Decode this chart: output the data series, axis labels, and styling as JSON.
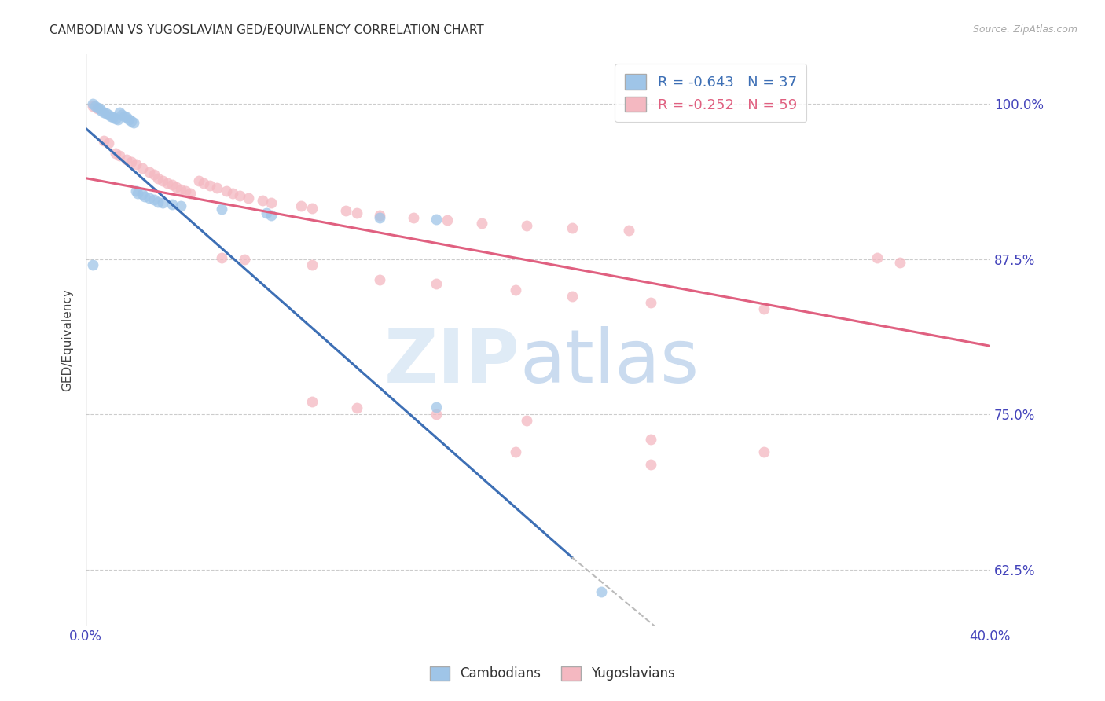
{
  "title": "CAMBODIAN VS YUGOSLAVIAN GED/EQUIVALENCY CORRELATION CHART",
  "source": "Source: ZipAtlas.com",
  "ylabel": "GED/Equivalency",
  "ytick_labels": [
    "100.0%",
    "87.5%",
    "75.0%",
    "62.5%"
  ],
  "ytick_values": [
    1.0,
    0.875,
    0.75,
    0.625
  ],
  "xlim": [
    0.0,
    0.4
  ],
  "ylim": [
    0.58,
    1.04
  ],
  "legend_blue_r": "-0.643",
  "legend_blue_n": "37",
  "legend_pink_r": "-0.252",
  "legend_pink_n": "59",
  "blue_color": "#9fc5e8",
  "pink_color": "#f4b8c1",
  "blue_line_color": "#3d6fb5",
  "pink_line_color": "#e06080",
  "cambodian_points": [
    [
      0.003,
      1.0
    ],
    [
      0.004,
      0.998
    ],
    [
      0.005,
      0.997
    ],
    [
      0.006,
      0.996
    ],
    [
      0.007,
      0.994
    ],
    [
      0.008,
      0.993
    ],
    [
      0.009,
      0.992
    ],
    [
      0.01,
      0.991
    ],
    [
      0.011,
      0.99
    ],
    [
      0.012,
      0.989
    ],
    [
      0.013,
      0.988
    ],
    [
      0.014,
      0.987
    ],
    [
      0.015,
      0.993
    ],
    [
      0.016,
      0.991
    ],
    [
      0.017,
      0.99
    ],
    [
      0.018,
      0.989
    ],
    [
      0.019,
      0.987
    ],
    [
      0.02,
      0.986
    ],
    [
      0.021,
      0.985
    ],
    [
      0.022,
      0.93
    ],
    [
      0.023,
      0.928
    ],
    [
      0.025,
      0.927
    ],
    [
      0.026,
      0.925
    ],
    [
      0.028,
      0.924
    ],
    [
      0.03,
      0.923
    ],
    [
      0.032,
      0.921
    ],
    [
      0.034,
      0.92
    ],
    [
      0.038,
      0.919
    ],
    [
      0.042,
      0.918
    ],
    [
      0.06,
      0.915
    ],
    [
      0.08,
      0.912
    ],
    [
      0.082,
      0.91
    ],
    [
      0.13,
      0.908
    ],
    [
      0.155,
      0.907
    ],
    [
      0.155,
      0.756
    ],
    [
      0.228,
      0.607
    ],
    [
      0.003,
      0.87
    ]
  ],
  "yugoslavian_points": [
    [
      0.003,
      0.998
    ],
    [
      0.005,
      0.996
    ],
    [
      0.008,
      0.97
    ],
    [
      0.01,
      0.968
    ],
    [
      0.013,
      0.96
    ],
    [
      0.015,
      0.958
    ],
    [
      0.018,
      0.955
    ],
    [
      0.02,
      0.953
    ],
    [
      0.022,
      0.951
    ],
    [
      0.025,
      0.948
    ],
    [
      0.028,
      0.945
    ],
    [
      0.03,
      0.943
    ],
    [
      0.032,
      0.94
    ],
    [
      0.034,
      0.938
    ],
    [
      0.036,
      0.936
    ],
    [
      0.038,
      0.935
    ],
    [
      0.04,
      0.933
    ],
    [
      0.042,
      0.931
    ],
    [
      0.044,
      0.93
    ],
    [
      0.046,
      0.928
    ],
    [
      0.05,
      0.938
    ],
    [
      0.052,
      0.936
    ],
    [
      0.055,
      0.934
    ],
    [
      0.058,
      0.932
    ],
    [
      0.062,
      0.93
    ],
    [
      0.065,
      0.928
    ],
    [
      0.068,
      0.926
    ],
    [
      0.072,
      0.924
    ],
    [
      0.078,
      0.922
    ],
    [
      0.082,
      0.92
    ],
    [
      0.095,
      0.918
    ],
    [
      0.1,
      0.916
    ],
    [
      0.115,
      0.914
    ],
    [
      0.12,
      0.912
    ],
    [
      0.13,
      0.91
    ],
    [
      0.145,
      0.908
    ],
    [
      0.16,
      0.906
    ],
    [
      0.175,
      0.904
    ],
    [
      0.195,
      0.902
    ],
    [
      0.215,
      0.9
    ],
    [
      0.24,
      0.898
    ],
    [
      0.06,
      0.876
    ],
    [
      0.07,
      0.875
    ],
    [
      0.1,
      0.87
    ],
    [
      0.13,
      0.858
    ],
    [
      0.155,
      0.855
    ],
    [
      0.19,
      0.85
    ],
    [
      0.215,
      0.845
    ],
    [
      0.25,
      0.84
    ],
    [
      0.3,
      0.835
    ],
    [
      0.35,
      0.876
    ],
    [
      0.1,
      0.76
    ],
    [
      0.12,
      0.755
    ],
    [
      0.155,
      0.75
    ],
    [
      0.195,
      0.745
    ],
    [
      0.25,
      0.73
    ],
    [
      0.3,
      0.72
    ],
    [
      0.36,
      0.872
    ],
    [
      0.19,
      0.72
    ],
    [
      0.25,
      0.71
    ]
  ],
  "blue_trendline_solid": [
    [
      0.0,
      0.98
    ],
    [
      0.215,
      0.635
    ]
  ],
  "blue_trendline_dashed": [
    [
      0.215,
      0.635
    ],
    [
      0.4,
      0.355
    ]
  ],
  "pink_trendline": [
    [
      0.0,
      0.94
    ],
    [
      0.4,
      0.805
    ]
  ]
}
